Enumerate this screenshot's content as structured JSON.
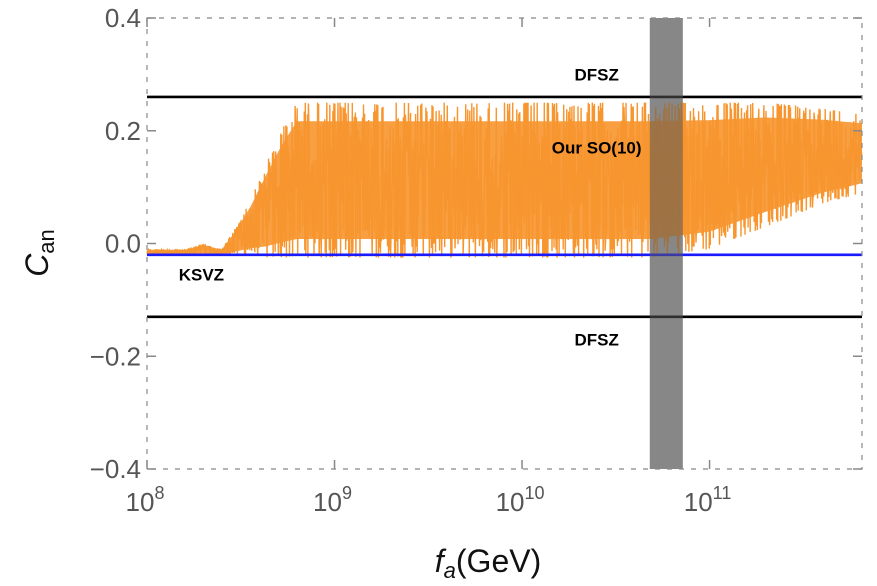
{
  "chart_data": {
    "type": "line",
    "title": "",
    "xlabel": "f_a(GeV)",
    "xlabel_parts": {
      "var": "f",
      "sub": "a",
      "unit": "(GeV)"
    },
    "ylabel": "C_an",
    "ylabel_parts": {
      "var": "C",
      "sub": "an"
    },
    "x_scale": "log",
    "xlim": [
      100000000.0,
      650000000000.0
    ],
    "ylim": [
      -0.4,
      0.4
    ],
    "x_ticks": [
      {
        "base": "10",
        "exp": "8",
        "value": 100000000.0
      },
      {
        "base": "10",
        "exp": "9",
        "value": 1000000000.0
      },
      {
        "base": "10",
        "exp": "10",
        "value": 10000000000.0
      },
      {
        "base": "10",
        "exp": "11",
        "value": 100000000000.0
      }
    ],
    "y_ticks": [
      {
        "label": "0.4",
        "value": 0.4
      },
      {
        "label": "0.2",
        "value": 0.2
      },
      {
        "label": "0.0",
        "value": 0.0
      },
      {
        "label": "−0.2",
        "value": -0.2
      },
      {
        "label": "−0.4",
        "value": -0.4
      }
    ],
    "grid": false,
    "reference_lines": [
      {
        "name": "DFSZ",
        "y": 0.26,
        "color": "#000000"
      },
      {
        "name": "DFSZ",
        "y": -0.13,
        "color": "#000000"
      },
      {
        "name": "KSVZ",
        "y": -0.02,
        "color": "#1a1aff"
      }
    ],
    "band": {
      "x_range": [
        48000000000.0,
        72000000000.0
      ],
      "color": "#555555"
    },
    "series": [
      {
        "name": "Our SO(10)",
        "color": "#f7952e",
        "envelope": [
          {
            "x": 100000000.0,
            "low": -0.02,
            "high": -0.01
          },
          {
            "x": 160000000.0,
            "low": -0.02,
            "high": -0.01
          },
          {
            "x": 200000000.0,
            "low": -0.02,
            "high": 0.0
          },
          {
            "x": 250000000.0,
            "low": -0.02,
            "high": -0.01
          },
          {
            "x": 300000000.0,
            "low": -0.02,
            "high": 0.03
          },
          {
            "x": 360000000.0,
            "low": -0.02,
            "high": 0.08
          },
          {
            "x": 430000000.0,
            "low": -0.025,
            "high": 0.14
          },
          {
            "x": 520000000.0,
            "low": -0.025,
            "high": 0.2
          },
          {
            "x": 630000000.0,
            "low": -0.025,
            "high": 0.25
          },
          {
            "x": 1000000000.0,
            "low": -0.025,
            "high": 0.25
          },
          {
            "x": 10000000000.0,
            "low": -0.025,
            "high": 0.25
          },
          {
            "x": 50000000000.0,
            "low": -0.025,
            "high": 0.25
          },
          {
            "x": 100000000000.0,
            "low": -0.01,
            "high": 0.25
          },
          {
            "x": 200000000000.0,
            "low": 0.03,
            "high": 0.25
          },
          {
            "x": 400000000000.0,
            "low": 0.07,
            "high": 0.24
          },
          {
            "x": 650000000000.0,
            "low": 0.09,
            "high": 0.23
          }
        ]
      }
    ],
    "annotations": [
      {
        "text": "DFSZ",
        "x": 25000000000.0,
        "y": 0.3
      },
      {
        "text": "Our SO(10)",
        "x": 25000000000.0,
        "y": 0.17
      },
      {
        "text": "KSVZ",
        "x": 195000000.0,
        "y": -0.055
      },
      {
        "text": "DFSZ",
        "x": 25000000000.0,
        "y": -0.17
      }
    ]
  }
}
